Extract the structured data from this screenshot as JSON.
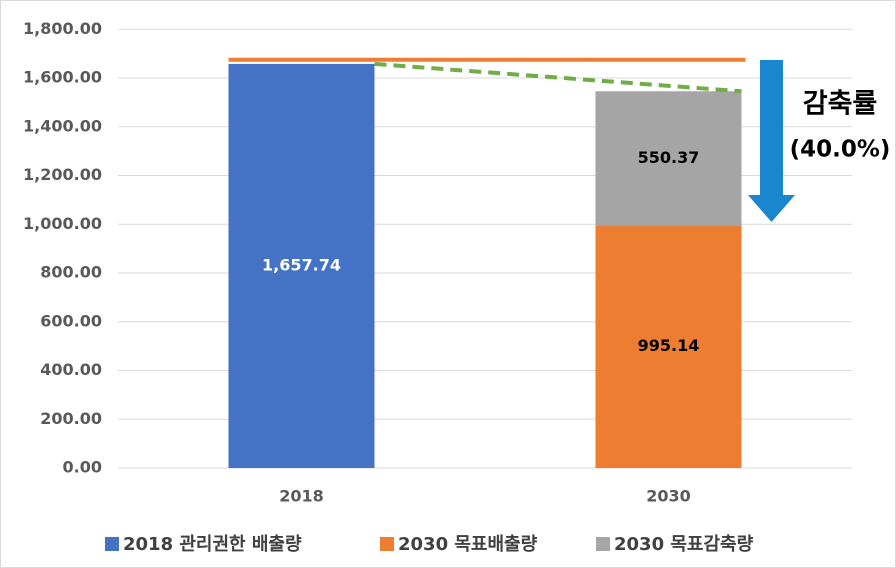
{
  "chart_data": {
    "type": "stacked_bar",
    "categories": [
      "2018",
      "2030"
    ],
    "series": [
      {
        "name": "2018 관리권한 배출량",
        "color": "#4472c4",
        "label_color": "#ffffff",
        "values": [
          1657.74,
          null
        ],
        "value_labels": [
          "1,657.74",
          null
        ]
      },
      {
        "name": "2030 목표배출량",
        "color": "#ed7d31",
        "label_color": "#000000",
        "values": [
          null,
          995.14
        ]
      },
      {
        "name": "2030 목표감축량",
        "color": "#a5a5a5",
        "label_color": "#000000",
        "values": [
          null,
          550.37
        ]
      }
    ],
    "ylim": [
      0,
      1800
    ],
    "yticks": [
      {
        "value": 0,
        "label": "0.00"
      },
      {
        "value": 200,
        "label": "200.00"
      },
      {
        "value": 400,
        "label": "400.00"
      },
      {
        "value": 600,
        "label": "600.00"
      },
      {
        "value": 800,
        "label": "800.00"
      },
      {
        "value": 1000,
        "label": "1,000.00"
      },
      {
        "value": 1200,
        "label": "1,200.00"
      },
      {
        "value": 1400,
        "label": "1,400.00"
      },
      {
        "value": 1600,
        "label": "1,600.00"
      },
      {
        "value": 1800,
        "label": "1,800.00"
      }
    ],
    "grid": true,
    "legend": "bottom",
    "reference_line": {
      "value": 1675,
      "color": "#ed7d31"
    },
    "trend_line_color": "#70ad47",
    "arrow_color": "#1a86d0",
    "annotations": [
      "감축률",
      "(40.0%)"
    ]
  }
}
